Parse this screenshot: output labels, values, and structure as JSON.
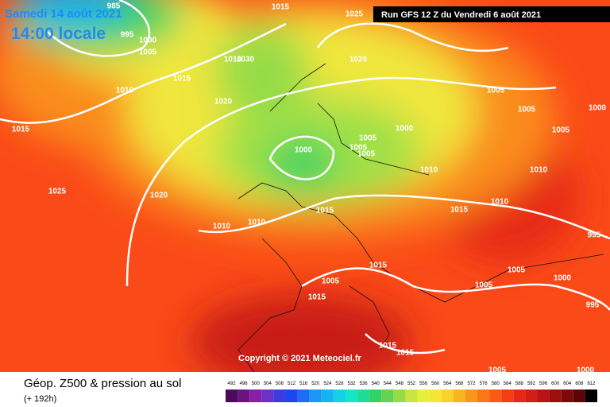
{
  "header": {
    "date": "Samedi 14 août 2021",
    "time": "14:00 locale",
    "run": "Run GFS 12 Z du Vendredi 6 août 2021"
  },
  "copyright": "Copyright © 2021 Meteociel.fr",
  "footer": {
    "title": "Géop. Z500 & pression au sol",
    "lead": "(+ 192h)"
  },
  "colorbar": {
    "levels": [
      492,
      496,
      500,
      504,
      508,
      512,
      516,
      520,
      524,
      528,
      532,
      536,
      540,
      544,
      548,
      552,
      556,
      560,
      564,
      568,
      572,
      576,
      580,
      584,
      588,
      592,
      596,
      600,
      604,
      608,
      612
    ],
    "colors": [
      "#4b0a5a",
      "#6a1480",
      "#8a1ea8",
      "#6a32c8",
      "#3c3cdc",
      "#1e46f0",
      "#1e6ef5",
      "#1e96f5",
      "#14b4f0",
      "#14d2e6",
      "#14e6c8",
      "#1edc96",
      "#32d264",
      "#64d250",
      "#96dc46",
      "#c8e641",
      "#e6f03c",
      "#f5e632",
      "#fad228",
      "#fab41e",
      "#fa961e",
      "#fa7814",
      "#fa5a14",
      "#f53c14",
      "#e62814",
      "#d21e14",
      "#b91414",
      "#9b0f0f",
      "#7d0a0a",
      "#5a0505",
      "#000000"
    ]
  },
  "isobar_labels": [
    985,
    995,
    1000,
    1005,
    1015,
    1025,
    1010,
    1015,
    1010,
    1030,
    1020,
    1020,
    1015,
    1025,
    1020,
    1000,
    1005,
    1005,
    1005,
    1000,
    1005,
    1005,
    1005,
    1000,
    1010,
    1010,
    1010,
    1015,
    1015,
    1010,
    1010,
    995,
    1015,
    1005,
    1015,
    1005,
    1005,
    1000,
    995,
    1015,
    1015,
    1005,
    1000
  ]
}
